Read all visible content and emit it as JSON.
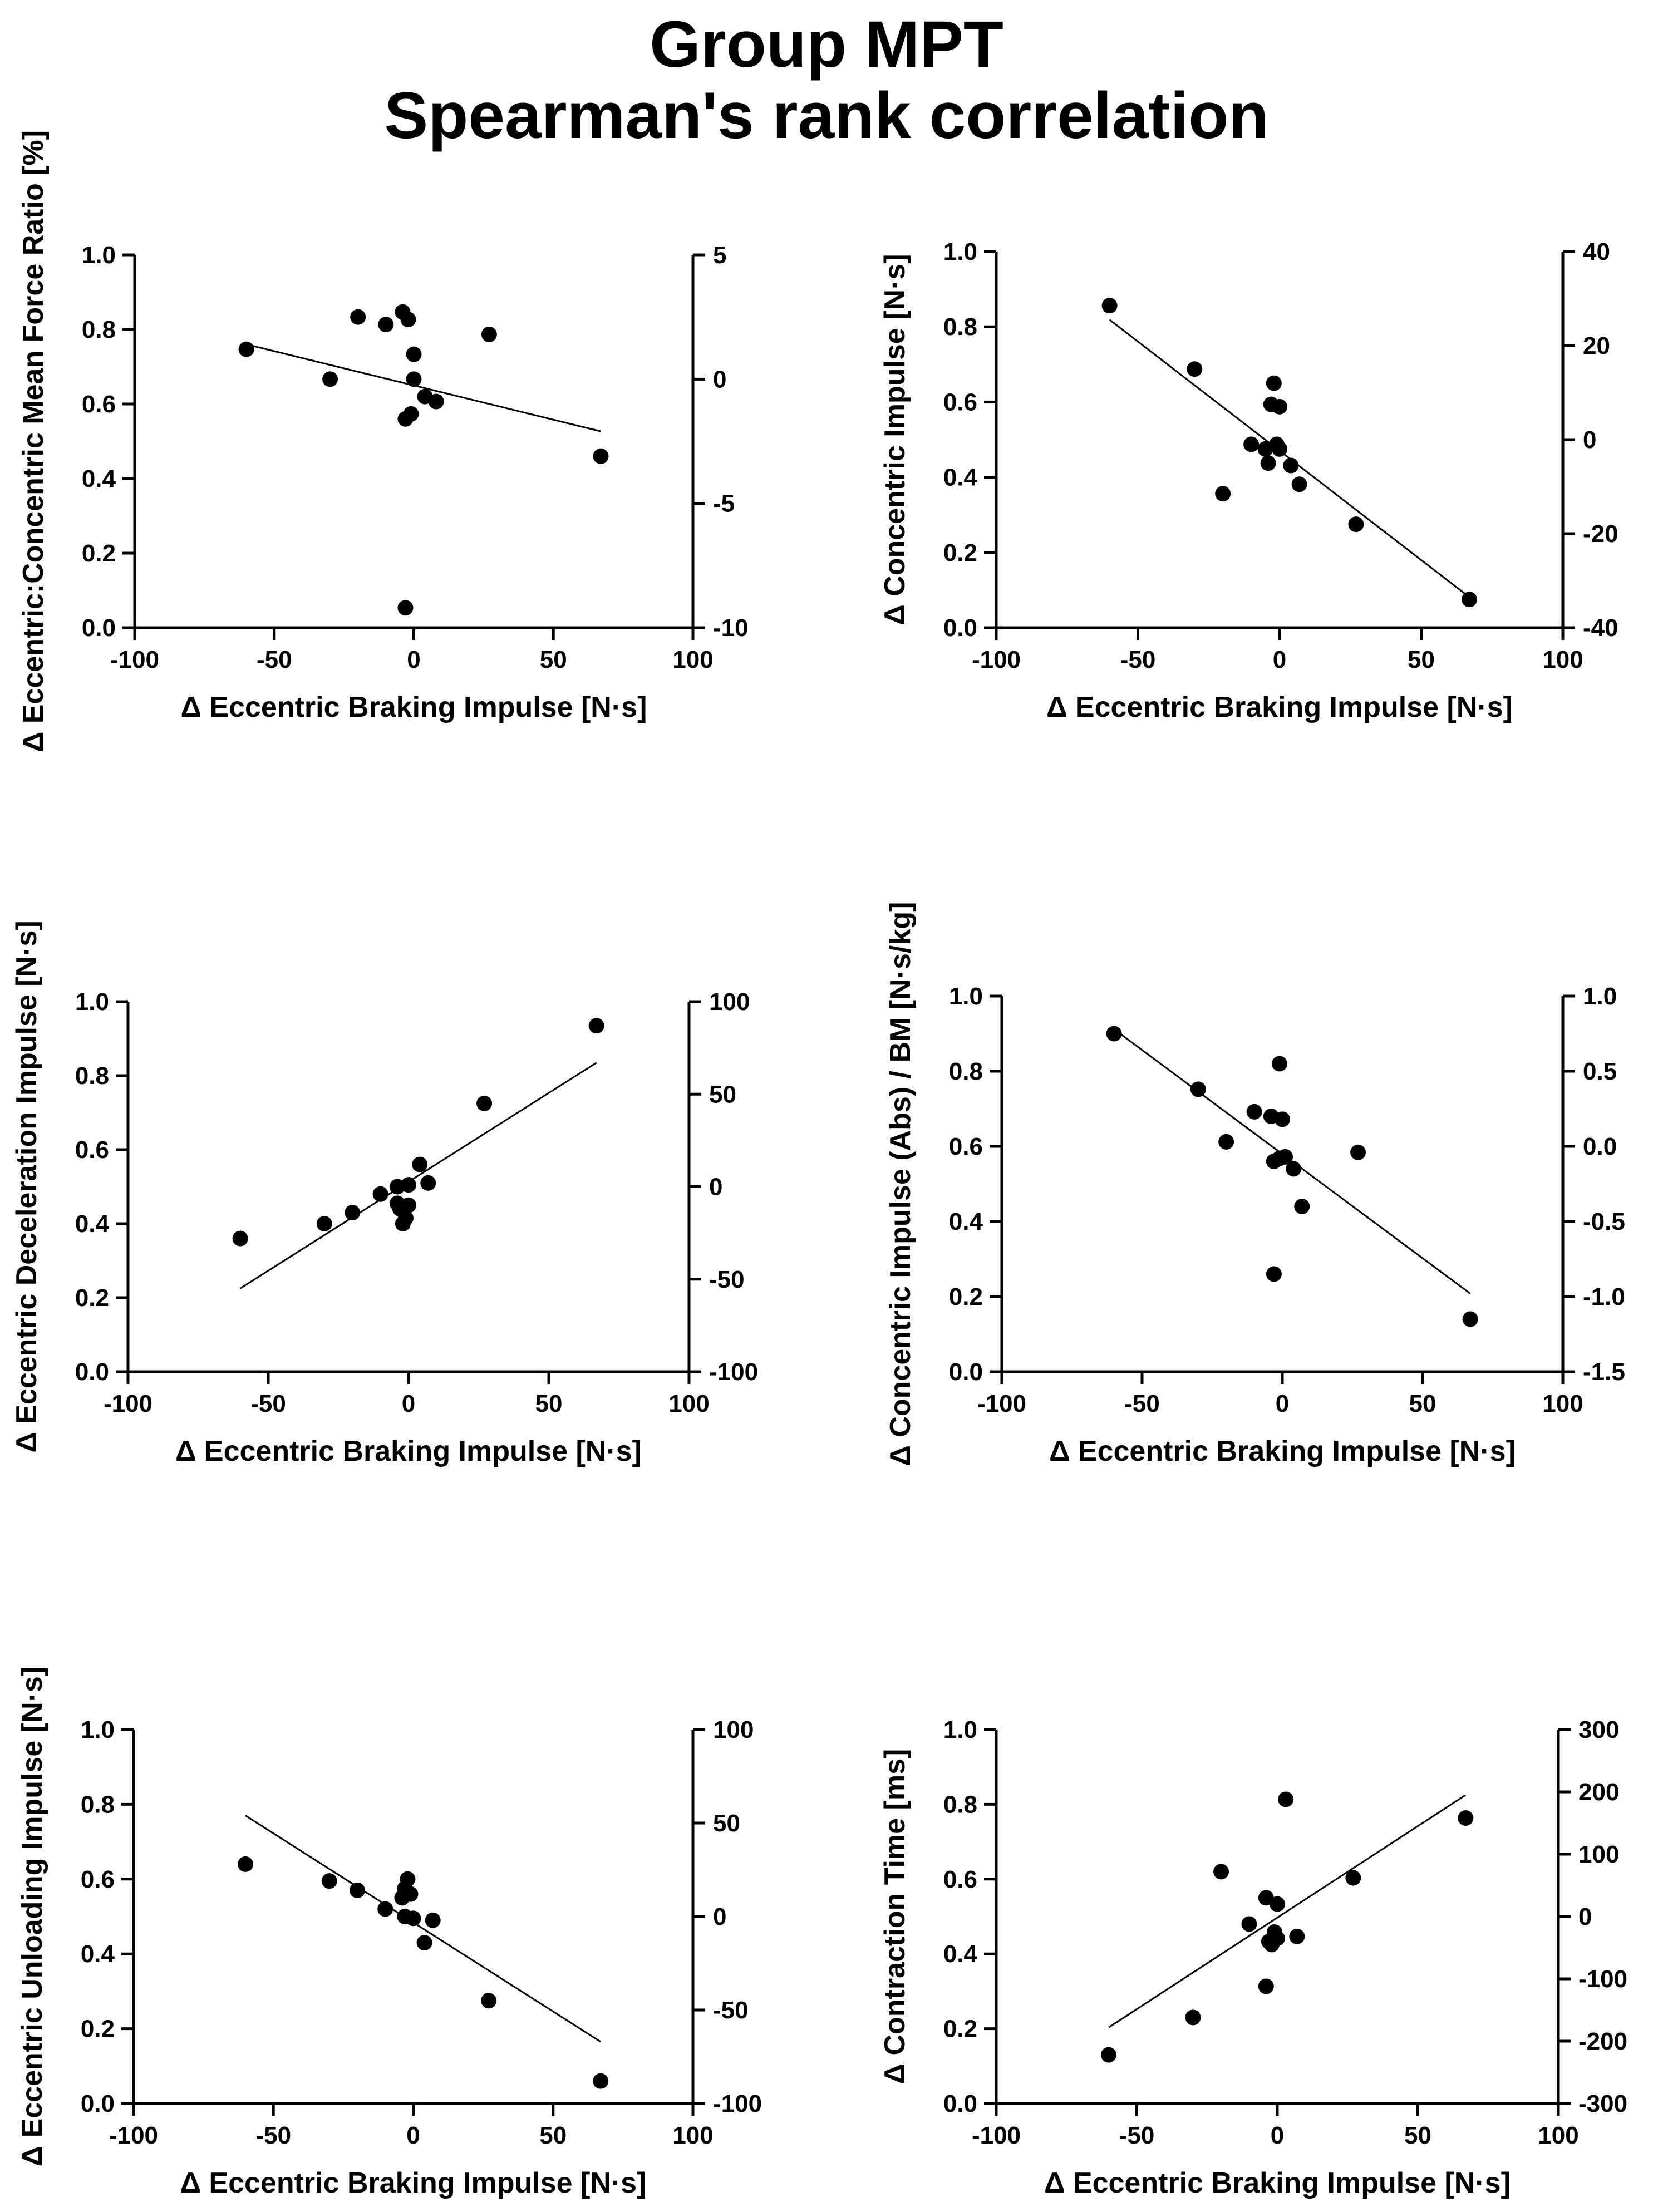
{
  "title": {
    "line1": "Group MPT",
    "line2": "Spearman's rank correlation"
  },
  "colors": {
    "ink": "#000000",
    "background": "#ffffff"
  },
  "chart_data": [
    {
      "type": "scatter",
      "id": "ratio",
      "xlabel": "Δ Eccentric Braking Impulse [N·s]",
      "ylabel": "Δ Eccentric:Concentric Mean Force Ratio [%]",
      "xlim": [
        -100,
        100
      ],
      "xticks": [
        -100,
        -50,
        0,
        50,
        100
      ],
      "ylim_left": [
        0,
        1
      ],
      "yticks_left": [
        "0.0",
        "0.2",
        "0.4",
        "0.6",
        "0.8",
        "1.0"
      ],
      "ylim_right": [
        -10,
        5
      ],
      "yticks_right": [
        "-10",
        "-5",
        "0",
        "5"
      ],
      "points": [
        [
          -60,
          1.2
        ],
        [
          -30,
          0
        ],
        [
          -20,
          2.5
        ],
        [
          -10,
          2.2
        ],
        [
          -4,
          2.7
        ],
        [
          -2,
          2.4
        ],
        [
          0,
          1
        ],
        [
          0,
          0
        ],
        [
          -3,
          -1.6
        ],
        [
          -1,
          -1.4
        ],
        [
          4,
          -0.7
        ],
        [
          8,
          -0.9
        ],
        [
          27,
          1.8
        ],
        [
          67,
          -3.1
        ],
        [
          -3,
          -9.2
        ]
      ],
      "fit_line": [
        [
          -60,
          1.4
        ],
        [
          67,
          -2.1
        ]
      ]
    },
    {
      "type": "scatter",
      "id": "concentric-impulse",
      "xlabel": "Δ Eccentric Braking Impulse [N·s]",
      "ylabel": "Δ Concentric Impulse [N·s]",
      "xlim": [
        -100,
        100
      ],
      "xticks": [
        -100,
        -50,
        0,
        50,
        100
      ],
      "ylim_left": [
        0,
        1
      ],
      "yticks_left": [
        "0.0",
        "0.2",
        "0.4",
        "0.6",
        "0.8",
        "1.0"
      ],
      "ylim_right": [
        -40,
        40
      ],
      "yticks_right": [
        "-40",
        "-20",
        "0",
        "20",
        "40"
      ],
      "points": [
        [
          -60,
          28.5
        ],
        [
          -30,
          15
        ],
        [
          -20,
          -11.5
        ],
        [
          -10,
          -1
        ],
        [
          -5,
          -2
        ],
        [
          -4,
          -5
        ],
        [
          -3,
          7.5
        ],
        [
          -2,
          12
        ],
        [
          -1,
          -1
        ],
        [
          0,
          7
        ],
        [
          0,
          -2
        ],
        [
          4,
          -5.5
        ],
        [
          7,
          -9.5
        ],
        [
          27,
          -18
        ],
        [
          67,
          -34
        ]
      ],
      "fit_line": [
        [
          -60,
          25.5
        ],
        [
          67,
          -33.5
        ]
      ]
    },
    {
      "type": "scatter",
      "id": "deceleration-impulse",
      "xlabel": "Δ Eccentric Braking Impulse [N·s]",
      "ylabel": "Δ Eccentric Deceleration Impulse [N·s]",
      "xlim": [
        -100,
        100
      ],
      "xticks": [
        -100,
        -50,
        0,
        50,
        100
      ],
      "ylim_left": [
        0,
        1
      ],
      "yticks_left": [
        "0.0",
        "0.2",
        "0.4",
        "0.6",
        "0.8",
        "1.0"
      ],
      "ylim_right": [
        -100,
        100
      ],
      "yticks_right": [
        "-100",
        "-50",
        "0",
        "50",
        "100"
      ],
      "points": [
        [
          -60,
          -28
        ],
        [
          -30,
          -20
        ],
        [
          -20,
          -14
        ],
        [
          -10,
          -4
        ],
        [
          -4,
          0
        ],
        [
          -4,
          -9
        ],
        [
          -3,
          -12
        ],
        [
          -2,
          -20
        ],
        [
          -1,
          -17
        ],
        [
          0,
          1
        ],
        [
          0,
          -10
        ],
        [
          4,
          12
        ],
        [
          7,
          2
        ],
        [
          27,
          45
        ],
        [
          67,
          87
        ]
      ],
      "fit_line": [
        [
          -60,
          -55
        ],
        [
          67,
          67
        ]
      ]
    },
    {
      "type": "scatter",
      "id": "concentric-impulse-bm",
      "xlabel": "Δ Eccentric Braking Impulse [N·s]",
      "ylabel": "Δ Concentric Impulse (Abs) / BM [N·s/kg]",
      "xlim": [
        -100,
        100
      ],
      "xticks": [
        -100,
        -50,
        0,
        50,
        100
      ],
      "ylim_left": [
        0,
        1
      ],
      "yticks_left": [
        "0.0",
        "0.2",
        "0.4",
        "0.6",
        "0.8",
        "1.0"
      ],
      "ylim_right": [
        -1.5,
        1
      ],
      "yticks_right": [
        "-1.5",
        "-1.0",
        "-0.5",
        "0.0",
        "0.5",
        "1.0"
      ],
      "points": [
        [
          -60,
          0.75
        ],
        [
          -30,
          0.38
        ],
        [
          -20,
          0.03
        ],
        [
          -10,
          0.23
        ],
        [
          -4,
          0.2
        ],
        [
          -3,
          -0.1
        ],
        [
          -1,
          0.55
        ],
        [
          -1,
          -0.08
        ],
        [
          0,
          0.18
        ],
        [
          1,
          -0.07
        ],
        [
          4,
          -0.15
        ],
        [
          7,
          -0.4
        ],
        [
          27,
          -0.04
        ],
        [
          67,
          -1.15
        ],
        [
          -3,
          -0.85
        ]
      ],
      "fit_line": [
        [
          -60,
          0.78
        ],
        [
          67,
          -0.98
        ]
      ]
    },
    {
      "type": "scatter",
      "id": "unloading-impulse",
      "xlabel": "Δ Eccentric Braking Impulse [N·s]",
      "ylabel": "Δ Eccentric Unloading Impulse [N·s]",
      "xlim": [
        -100,
        100
      ],
      "xticks": [
        -100,
        -50,
        0,
        50,
        100
      ],
      "ylim_left": [
        0,
        1
      ],
      "yticks_left": [
        "0.0",
        "0.2",
        "0.4",
        "0.6",
        "0.8",
        "1.0"
      ],
      "ylim_right": [
        -100,
        100
      ],
      "yticks_right": [
        "-100",
        "-50",
        "0",
        "50",
        "100"
      ],
      "points": [
        [
          -60,
          28
        ],
        [
          -30,
          19
        ],
        [
          -20,
          14
        ],
        [
          -10,
          4
        ],
        [
          -4,
          10
        ],
        [
          -3,
          15
        ],
        [
          -3,
          0
        ],
        [
          -2,
          20
        ],
        [
          -1,
          12
        ],
        [
          0,
          -1
        ],
        [
          4,
          -14
        ],
        [
          7,
          -2
        ],
        [
          27,
          -45
        ],
        [
          67,
          -88
        ]
      ],
      "fit_line": [
        [
          -60,
          54
        ],
        [
          67,
          -67
        ]
      ]
    },
    {
      "type": "scatter",
      "id": "contraction-time",
      "xlabel": "Δ Eccentric Braking Impulse [N·s]",
      "ylabel": "Δ Contraction Time [ms]",
      "xlim": [
        -100,
        100
      ],
      "xticks": [
        -100,
        -50,
        0,
        50,
        100
      ],
      "ylim_left": [
        0,
        1
      ],
      "yticks_left": [
        "0.0",
        "0.2",
        "0.4",
        "0.6",
        "0.8",
        "1.0"
      ],
      "ylim_right": [
        -300,
        300
      ],
      "yticks_right": [
        "-300",
        "-200",
        "-100",
        "0",
        "100",
        "200",
        "300"
      ],
      "points": [
        [
          -60,
          -222
        ],
        [
          -30,
          -162
        ],
        [
          -20,
          72
        ],
        [
          -10,
          -12
        ],
        [
          -4,
          30
        ],
        [
          -3,
          -40
        ],
        [
          -2,
          -45
        ],
        [
          -1,
          -25
        ],
        [
          0,
          20
        ],
        [
          0,
          -35
        ],
        [
          3,
          188
        ],
        [
          7,
          -32
        ],
        [
          27,
          62
        ],
        [
          67,
          158
        ],
        [
          -4,
          -112
        ]
      ],
      "fit_line": [
        [
          -60,
          -178
        ],
        [
          67,
          195
        ]
      ]
    }
  ]
}
